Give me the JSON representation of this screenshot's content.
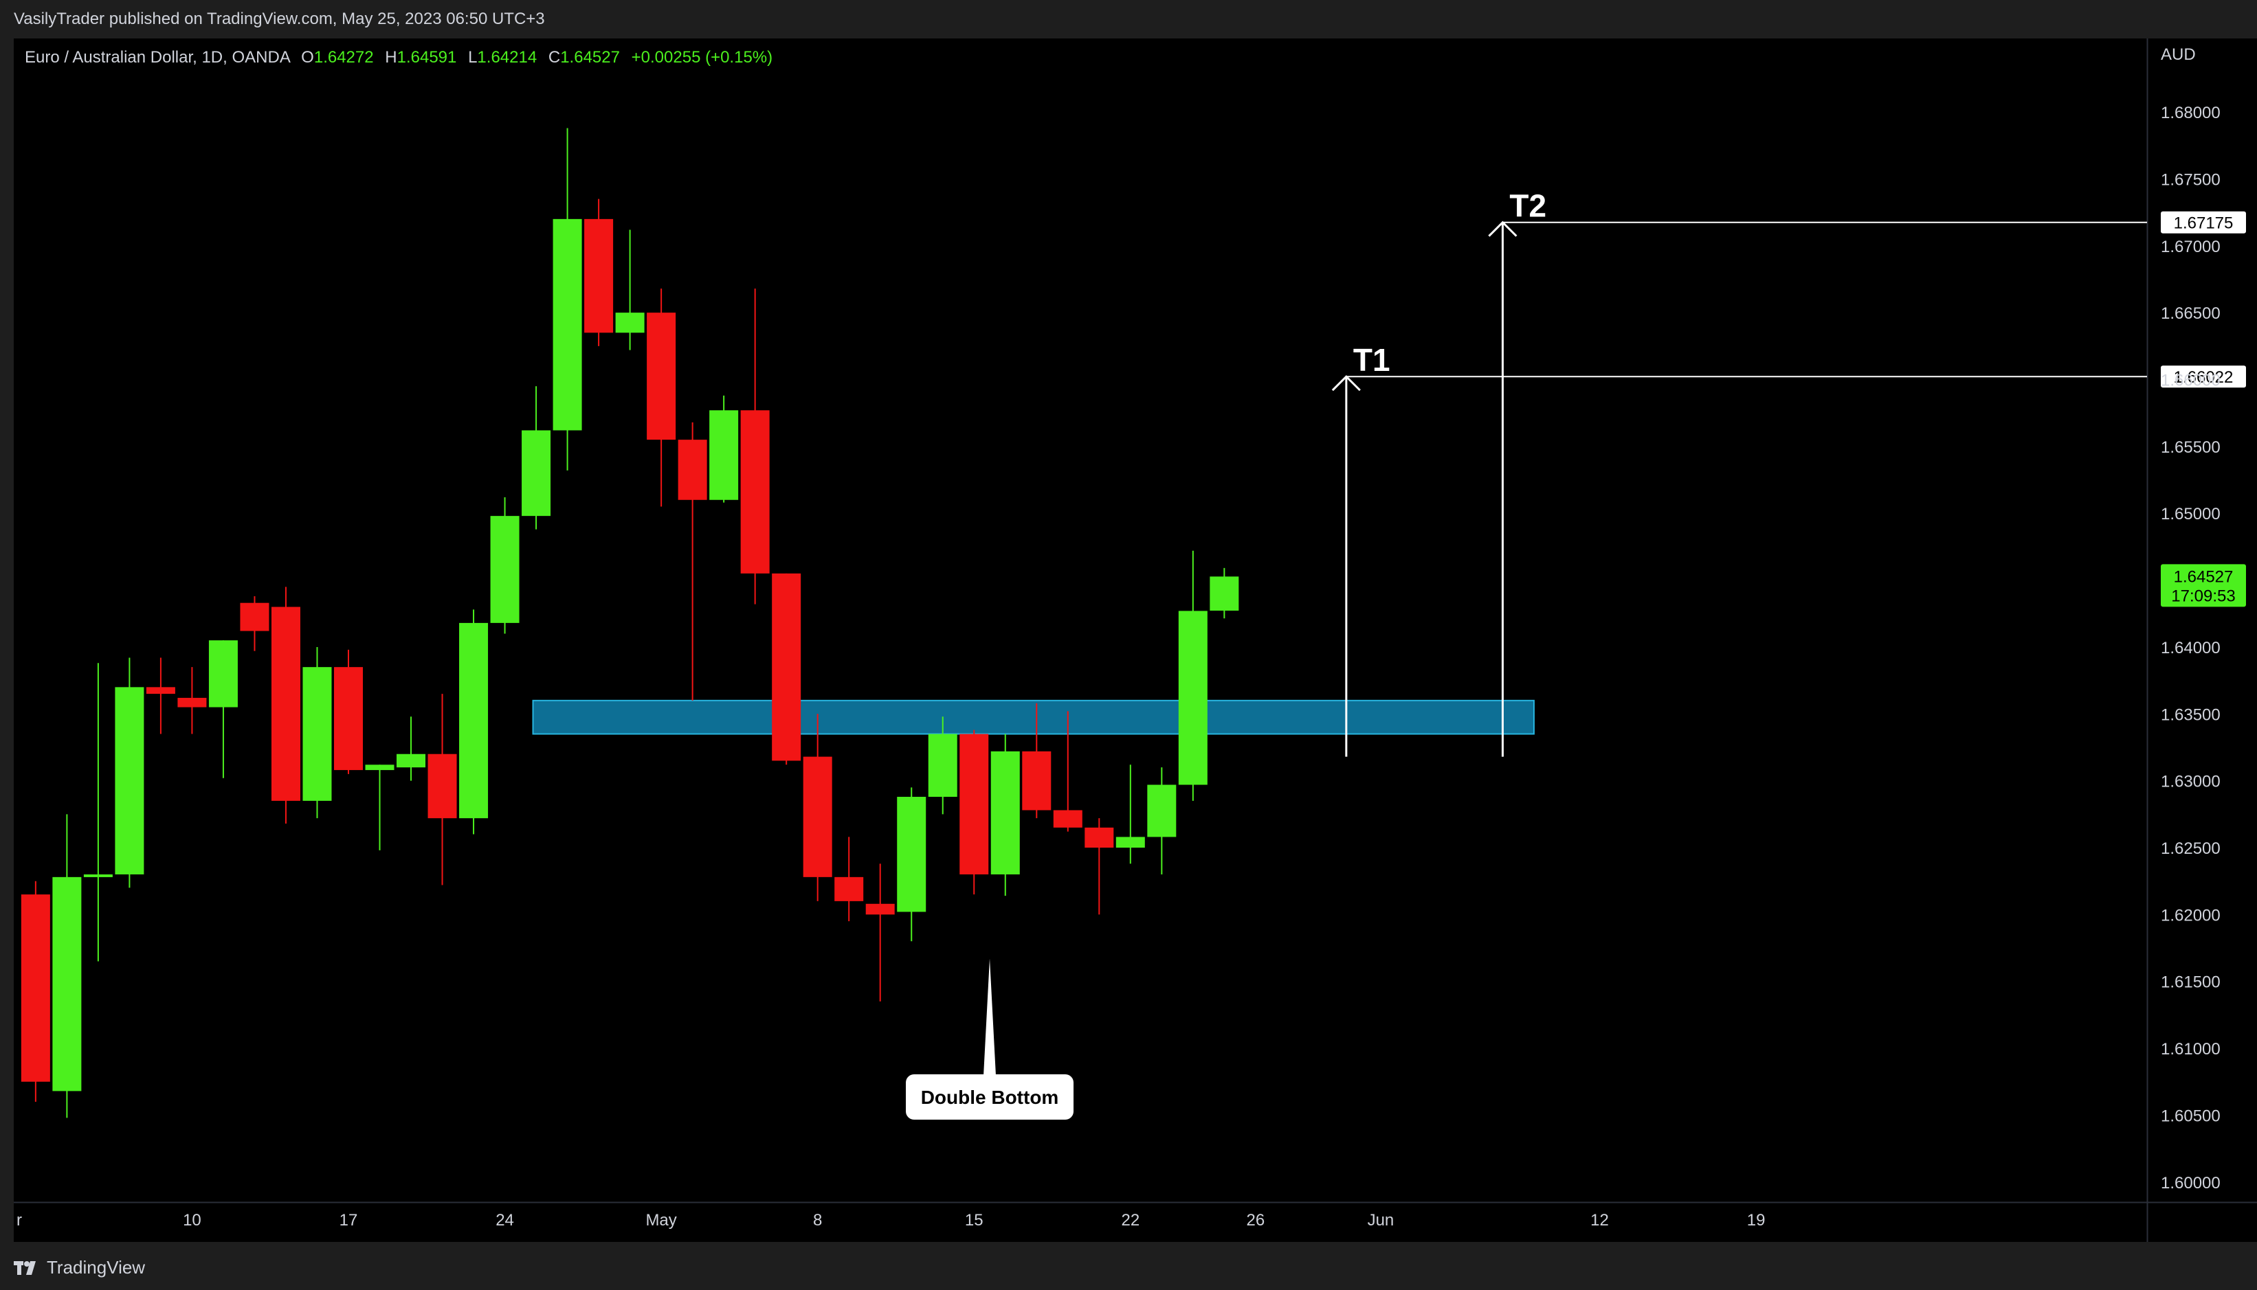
{
  "header": {
    "publish_info": "VasilyTrader published on TradingView.com, May 25, 2023 06:50 UTC+3"
  },
  "legend": {
    "symbol": "Euro / Australian Dollar, 1D, OANDA",
    "open_label": "O",
    "open": "1.64272",
    "high_label": "H",
    "high": "1.64591",
    "low_label": "L",
    "low": "1.64214",
    "close_label": "C",
    "close": "1.64527",
    "change": "+0.00255 (+0.15%)"
  },
  "price_scale": {
    "currency": "AUD",
    "last_price": "1.64527",
    "countdown": "17:09:53"
  },
  "brand": {
    "name": "TradingView"
  },
  "colors": {
    "up": "#4cf01e",
    "down": "#f21515",
    "zone": "#0d6f95",
    "zone_border": "#28b5e0",
    "background": "#000000",
    "panel": "#1e1e1e",
    "annotation": "#ffffff"
  },
  "chart_data": {
    "type": "candlestick",
    "symbol": "EURAUD",
    "timeframe": "1D",
    "ylim": [
      1.5985,
      1.6855
    ],
    "xlim": [
      -0.7,
      67.5
    ],
    "grid": false,
    "y_ticks": [
      "1.60000",
      "1.60500",
      "1.61000",
      "1.61500",
      "1.62000",
      "1.62500",
      "1.63000",
      "1.63500",
      "1.64000",
      "1.64500",
      "1.65000",
      "1.65500",
      "1.66000",
      "1.66500",
      "1.67000",
      "1.67500",
      "1.68000"
    ],
    "x_ticks": [
      {
        "i": -0.9,
        "label": "r"
      },
      {
        "i": 5,
        "label": "10"
      },
      {
        "i": 10,
        "label": "17"
      },
      {
        "i": 15,
        "label": "24"
      },
      {
        "i": 20,
        "label": "May"
      },
      {
        "i": 25,
        "label": "8"
      },
      {
        "i": 30,
        "label": "15"
      },
      {
        "i": 35,
        "label": "22"
      },
      {
        "i": 39,
        "label": "26"
      },
      {
        "i": 43,
        "label": "Jun"
      },
      {
        "i": 50,
        "label": "12"
      },
      {
        "i": 55,
        "label": "19"
      }
    ],
    "candles": [
      {
        "o": 1.6215,
        "h": 1.6225,
        "l": 1.606,
        "c": 1.6075
      },
      {
        "o": 1.6068,
        "h": 1.6275,
        "l": 1.6048,
        "c": 1.6228
      },
      {
        "o": 1.6228,
        "h": 1.6388,
        "l": 1.6165,
        "c": 1.623
      },
      {
        "o": 1.623,
        "h": 1.6392,
        "l": 1.622,
        "c": 1.637
      },
      {
        "o": 1.637,
        "h": 1.6392,
        "l": 1.6335,
        "c": 1.6365
      },
      {
        "o": 1.6362,
        "h": 1.6385,
        "l": 1.6335,
        "c": 1.6355
      },
      {
        "o": 1.6355,
        "h": 1.6405,
        "l": 1.6302,
        "c": 1.6405
      },
      {
        "o": 1.6433,
        "h": 1.6438,
        "l": 1.6397,
        "c": 1.6412
      },
      {
        "o": 1.643,
        "h": 1.6445,
        "l": 1.6268,
        "c": 1.6285
      },
      {
        "o": 1.6285,
        "h": 1.64,
        "l": 1.6272,
        "c": 1.6385
      },
      {
        "o": 1.6385,
        "h": 1.6398,
        "l": 1.6305,
        "c": 1.6308
      },
      {
        "o": 1.6308,
        "h": 1.6312,
        "l": 1.6248,
        "c": 1.6312
      },
      {
        "o": 1.631,
        "h": 1.6348,
        "l": 1.63,
        "c": 1.632
      },
      {
        "o": 1.632,
        "h": 1.6365,
        "l": 1.6222,
        "c": 1.6272
      },
      {
        "o": 1.6272,
        "h": 1.6428,
        "l": 1.626,
        "c": 1.6418
      },
      {
        "o": 1.6418,
        "h": 1.6512,
        "l": 1.641,
        "c": 1.6498
      },
      {
        "o": 1.6498,
        "h": 1.6595,
        "l": 1.6488,
        "c": 1.6562
      },
      {
        "o": 1.6562,
        "h": 1.6788,
        "l": 1.6532,
        "c": 1.672
      },
      {
        "o": 1.672,
        "h": 1.6735,
        "l": 1.6625,
        "c": 1.6635
      },
      {
        "o": 1.6635,
        "h": 1.6712,
        "l": 1.6622,
        "c": 1.665
      },
      {
        "o": 1.665,
        "h": 1.6668,
        "l": 1.6505,
        "c": 1.6555
      },
      {
        "o": 1.6555,
        "h": 1.6568,
        "l": 1.636,
        "c": 1.651
      },
      {
        "o": 1.651,
        "h": 1.6588,
        "l": 1.6508,
        "c": 1.6577
      },
      {
        "o": 1.6577,
        "h": 1.6668,
        "l": 1.6432,
        "c": 1.6455
      },
      {
        "o": 1.6455,
        "h": 1.6455,
        "l": 1.6312,
        "c": 1.6315
      },
      {
        "o": 1.6318,
        "h": 1.635,
        "l": 1.621,
        "c": 1.6228
      },
      {
        "o": 1.6228,
        "h": 1.6258,
        "l": 1.6195,
        "c": 1.621
      },
      {
        "o": 1.6208,
        "h": 1.6238,
        "l": 1.6135,
        "c": 1.62
      },
      {
        "o": 1.6202,
        "h": 1.6295,
        "l": 1.618,
        "c": 1.6288
      },
      {
        "o": 1.6288,
        "h": 1.6348,
        "l": 1.6275,
        "c": 1.6335
      },
      {
        "o": 1.6335,
        "h": 1.6338,
        "l": 1.6215,
        "c": 1.623
      },
      {
        "o": 1.623,
        "h": 1.6335,
        "l": 1.6214,
        "c": 1.6322
      },
      {
        "o": 1.6322,
        "h": 1.6358,
        "l": 1.6272,
        "c": 1.6278
      },
      {
        "o": 1.6278,
        "h": 1.6352,
        "l": 1.6262,
        "c": 1.6265
      },
      {
        "o": 1.6265,
        "h": 1.6272,
        "l": 1.62,
        "c": 1.625
      },
      {
        "o": 1.625,
        "h": 1.6312,
        "l": 1.6238,
        "c": 1.6258
      },
      {
        "o": 1.6258,
        "h": 1.631,
        "l": 1.623,
        "c": 1.6297
      },
      {
        "o": 1.6297,
        "h": 1.6472,
        "l": 1.6285,
        "c": 1.6427
      },
      {
        "o": 1.64272,
        "h": 1.64591,
        "l": 1.64214,
        "c": 1.64527
      }
    ],
    "demand_zone": {
      "x_from": 15.9,
      "x_to": 47.9,
      "price_low": 1.6335,
      "price_high": 1.636
    },
    "targets": [
      {
        "label": "T1",
        "price": 1.66022,
        "price_label": "1.66022",
        "x": 41.9,
        "from_price": 1.6318
      },
      {
        "label": "T2",
        "price": 1.67175,
        "price_label": "1.67175",
        "x": 46.9,
        "from_price": 1.6318
      }
    ],
    "callout": {
      "text": "Double Bottom",
      "x": 30.5,
      "tip_price": 1.6167
    }
  }
}
